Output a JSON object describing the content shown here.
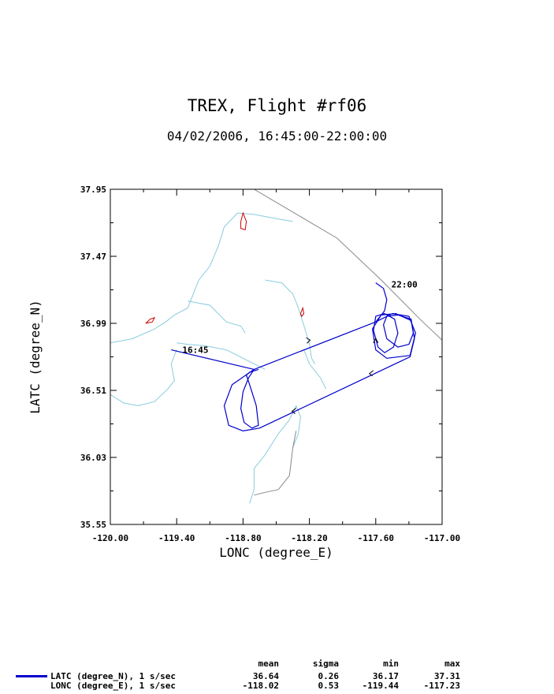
{
  "chart_data": {
    "type": "line",
    "title": "TREX, Flight #rf06",
    "subtitle": "04/02/2006, 16:45:00-22:00:00",
    "xlabel": "LONC (degree_E)",
    "ylabel": "LATC (degree_N)",
    "xlim": [
      -120.0,
      -117.0
    ],
    "ylim": [
      35.55,
      37.95
    ],
    "x_ticks": [
      "-120.00",
      "-119.40",
      "-118.80",
      "-118.20",
      "-117.60",
      "-117.00"
    ],
    "y_ticks": [
      "35.55",
      "36.03",
      "36.51",
      "36.99",
      "37.47",
      "37.95"
    ],
    "grid": false,
    "annotations": [
      {
        "text": "16:45",
        "x": -119.42,
        "y": 36.8
      },
      {
        "text": "22:00",
        "x": -117.53,
        "y": 37.27
      }
    ],
    "series": [
      {
        "color": "#0000cc",
        "x": [
          -119.45,
          -118.7,
          -117.6,
          -117.45,
          -117.3,
          -117.24,
          -117.29,
          -117.5,
          -117.6,
          -117.63,
          -117.55,
          -117.42,
          -117.28,
          -117.25,
          -117.29,
          -118.65,
          -118.8,
          -118.93,
          -118.97,
          -118.9,
          -118.7,
          -117.6,
          -117.52,
          -117.5,
          -117.53,
          -117.6,
          -117.6
        ],
        "y": [
          36.8,
          36.66,
          37.0,
          37.06,
          37.04,
          36.92,
          36.76,
          36.74,
          36.8,
          36.95,
          37.05,
          37.06,
          37.01,
          36.88,
          36.75,
          36.24,
          36.22,
          36.26,
          36.4,
          36.55,
          36.66,
          37.0,
          37.08,
          37.16,
          37.24,
          37.28,
          37.28
        ]
      },
      {
        "color": "#0000cc",
        "x": [
          -118.7,
          -118.75,
          -118.8,
          -118.82,
          -118.79,
          -118.72,
          -118.66,
          -118.68,
          -118.74,
          -118.77,
          -118.74,
          -118.66
        ],
        "y": [
          36.66,
          36.6,
          36.5,
          36.38,
          36.28,
          36.24,
          36.26,
          36.4,
          36.55,
          36.62,
          36.64,
          36.66
        ]
      },
      {
        "color": "#0000cc",
        "x": [
          -117.58,
          -117.62,
          -117.6,
          -117.52,
          -117.43,
          -117.4,
          -117.44,
          -117.52,
          -117.58
        ],
        "y": [
          36.82,
          36.94,
          37.04,
          37.06,
          37.02,
          36.92,
          36.82,
          36.78,
          36.82
        ]
      },
      {
        "color": "#0000cc",
        "x": [
          -117.5,
          -117.53,
          -117.5,
          -117.4,
          -117.28,
          -117.26,
          -117.3,
          -117.4,
          -117.5
        ],
        "y": [
          36.88,
          36.98,
          37.04,
          37.05,
          37.02,
          36.92,
          36.84,
          36.82,
          36.88
        ]
      }
    ],
    "map_layers": [
      {
        "kind": "boundary",
        "color": "#888888",
        "x": [
          -118.7,
          -117.95,
          -117.55,
          -117.2,
          -117.0
        ],
        "y": [
          37.95,
          37.6,
          37.3,
          37.02,
          36.87
        ]
      },
      {
        "kind": "river",
        "color": "#88ccdd",
        "x": [
          -120.0,
          -119.8,
          -119.6,
          -119.5,
          -119.42,
          -119.3,
          -119.2,
          -119.1,
          -119.02,
          -118.97,
          -118.85,
          -118.7,
          -118.5,
          -118.35
        ],
        "y": [
          36.85,
          36.88,
          36.95,
          37.0,
          37.05,
          37.1,
          37.3,
          37.4,
          37.55,
          37.68,
          37.78,
          37.77,
          37.74,
          37.72
        ]
      },
      {
        "kind": "river",
        "color": "#88ccdd",
        "x": [
          -119.3,
          -119.1,
          -118.95,
          -118.82,
          -118.78
        ],
        "y": [
          37.15,
          37.12,
          37.0,
          36.97,
          36.92
        ]
      },
      {
        "kind": "river",
        "color": "#88ccdd",
        "x": [
          -119.4,
          -119.3,
          -119.15,
          -118.95,
          -118.75,
          -118.6
        ],
        "y": [
          36.85,
          36.84,
          36.83,
          36.8,
          36.72,
          36.66
        ]
      },
      {
        "kind": "river",
        "color": "#88ccdd",
        "x": [
          -120.0,
          -119.88,
          -119.75,
          -119.6,
          -119.48,
          -119.42,
          -119.45,
          -119.4
        ],
        "y": [
          36.48,
          36.42,
          36.4,
          36.43,
          36.52,
          36.58,
          36.7,
          36.8
        ]
      },
      {
        "kind": "river",
        "color": "#88ccdd",
        "x": [
          -118.6,
          -118.45,
          -118.35,
          -118.3,
          -118.24,
          -118.2,
          -118.18,
          -118.15
        ],
        "y": [
          37.3,
          37.28,
          37.2,
          37.1,
          36.95,
          36.84,
          36.74,
          36.7
        ]
      },
      {
        "kind": "river",
        "color": "#88ccdd",
        "x": [
          -118.35,
          -118.3,
          -118.28,
          -118.32,
          -118.38,
          -118.48,
          -118.6,
          -118.7,
          -118.7,
          -118.74
        ],
        "y": [
          36.1,
          36.2,
          36.32,
          36.4,
          36.3,
          36.2,
          36.05,
          35.95,
          35.8,
          35.7
        ]
      },
      {
        "kind": "river",
        "color": "#88ccdd",
        "x": [
          -118.05,
          -118.1,
          -118.2,
          -118.25
        ],
        "y": [
          36.52,
          36.6,
          36.7,
          36.8
        ]
      },
      {
        "kind": "boundary",
        "color": "#888888",
        "x": [
          -118.32,
          -118.35,
          -118.38,
          -118.48,
          -118.6,
          -118.7
        ],
        "y": [
          36.22,
          36.1,
          35.9,
          35.8,
          35.78,
          35.76
        ]
      },
      {
        "kind": "lake",
        "color": "#cc0000",
        "x": [
          -119.68,
          -119.64,
          -119.6,
          -119.62,
          -119.68
        ],
        "y": [
          36.99,
          37.02,
          37.03,
          37.0,
          36.99
        ]
      },
      {
        "kind": "lake",
        "color": "#cc0000",
        "x": [
          -118.82,
          -118.8,
          -118.77,
          -118.78,
          -118.82,
          -118.82
        ],
        "y": [
          37.72,
          37.78,
          37.72,
          37.66,
          37.67,
          37.72
        ]
      },
      {
        "kind": "lake",
        "color": "#cc0000",
        "x": [
          -118.28,
          -118.26,
          -118.25,
          -118.27,
          -118.28
        ],
        "y": [
          37.06,
          37.1,
          37.06,
          37.04,
          37.06
        ]
      }
    ]
  },
  "stats": {
    "headers": [
      "mean",
      "sigma",
      "min",
      "max"
    ],
    "rows": [
      {
        "label": "LATC (degree_N), 1 s/sec",
        "mean": "36.64",
        "sigma": "0.26",
        "min": "36.17",
        "max": "37.31",
        "line_color": "#0000cc"
      },
      {
        "label": "LONC (degree_E), 1 s/sec",
        "mean": "-118.02",
        "sigma": "0.53",
        "min": "-119.44",
        "max": "-117.23"
      }
    ]
  }
}
